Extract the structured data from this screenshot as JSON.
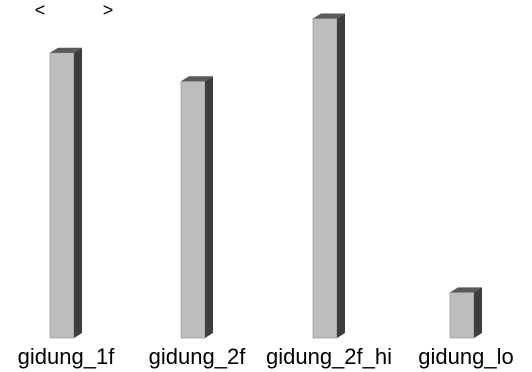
{
  "nav": {
    "prev": "<",
    "next": ">"
  },
  "chart_data": {
    "type": "bar",
    "categories": [
      "gidung_1f",
      "gidung_2f",
      "gidung_2f_hi",
      "gidung_lo"
    ],
    "values": [
      100,
      90,
      112,
      16
    ],
    "ylim": [
      0,
      115
    ],
    "title": "",
    "xlabel": "",
    "ylabel": "",
    "grid": false,
    "colors": {
      "front": "#bdbdbd",
      "side": "#3d3d3d",
      "top": "#5a5a5a"
    }
  }
}
